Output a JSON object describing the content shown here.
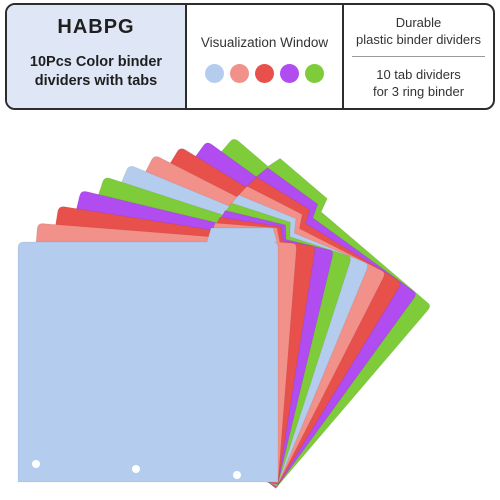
{
  "banner": {
    "brand": "HABPG",
    "tagline_line1": "10Pcs Color binder",
    "tagline_line2": "dividers with tabs",
    "window_title": "Visualization Window",
    "swatch_colors": [
      "#b4cdee",
      "#f2918a",
      "#e8514b",
      "#b04cf0",
      "#7fcc3a"
    ],
    "info_top_line1": "Durable",
    "info_top_line2": "plastic binder dividers",
    "info_bottom_line1": "10 tab dividers",
    "info_bottom_line2": "for 3 ring binder"
  },
  "product": {
    "image_subject": "fanned stack of colored plastic binder tab dividers",
    "divider_colors": [
      "#7fcc3a",
      "#b04cf0",
      "#e8514b",
      "#f2918a",
      "#b4cdee",
      "#7fcc3a",
      "#b04cf0",
      "#e8514b",
      "#f2918a",
      "#b4cdee"
    ]
  }
}
